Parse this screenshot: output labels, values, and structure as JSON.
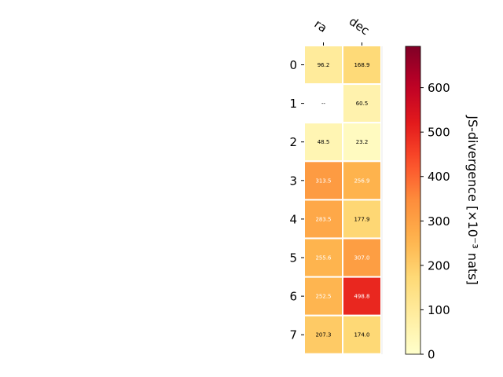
{
  "chart_data": {
    "type": "heatmap",
    "columns": [
      "ra",
      "dec"
    ],
    "rows": [
      "0",
      "1",
      "2",
      "3",
      "4",
      "5",
      "6",
      "7"
    ],
    "values": [
      [
        96.2,
        168.9
      ],
      [
        null,
        60.5
      ],
      [
        48.5,
        23.2
      ],
      [
        313.5,
        256.9
      ],
      [
        283.5,
        177.9
      ],
      [
        255.6,
        307.0
      ],
      [
        252.5,
        498.8
      ],
      [
        207.3,
        174.0
      ]
    ],
    "cell_labels": [
      [
        "96.2",
        "168.9"
      ],
      [
        "--",
        "60.5"
      ],
      [
        "48.5",
        "23.2"
      ],
      [
        "313.5",
        "256.9"
      ],
      [
        "283.5",
        "177.9"
      ],
      [
        "255.6",
        "307.0"
      ],
      [
        "252.5",
        "498.8"
      ],
      [
        "207.3",
        "174.0"
      ]
    ],
    "colorbar": {
      "label": "JS-divergence [×10⁻³ nats]",
      "range": [
        0,
        693
      ],
      "ticks": [
        0,
        100,
        200,
        300,
        400,
        500,
        600
      ],
      "colormap": "YlOrRd"
    },
    "colors": {
      "cell_border": "#ffffff",
      "text_dark": "#000000",
      "text_light": "#ffffff"
    }
  }
}
